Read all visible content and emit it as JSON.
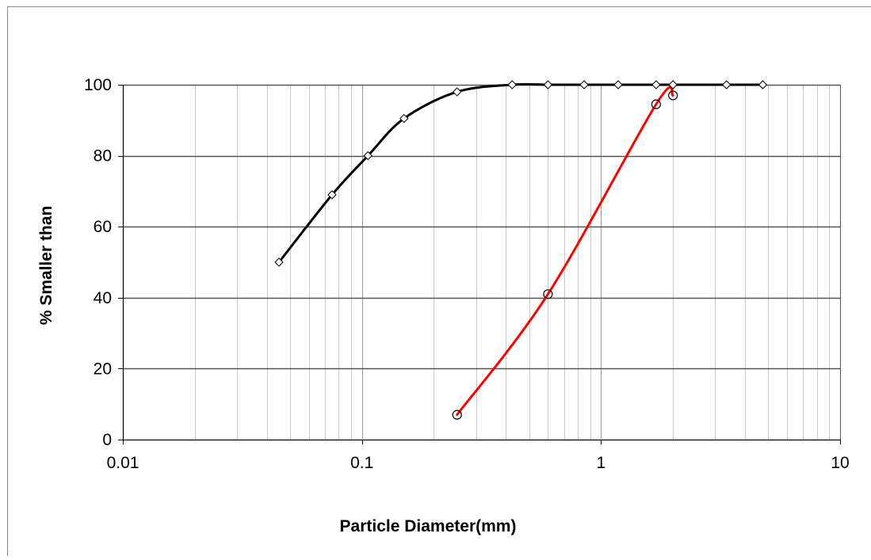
{
  "chart_data": {
    "type": "scatter",
    "xscale": "log",
    "xlim": [
      0.01,
      10
    ],
    "ylim": [
      0,
      100
    ],
    "xlabel": "Particle Diameter(mm)",
    "ylabel": "% Smaller than",
    "x_ticks": [
      0.01,
      0.1,
      1,
      10
    ],
    "x_tick_labels": [
      "0.01",
      "0.1",
      "1",
      "10"
    ],
    "y_ticks": [
      0,
      20,
      40,
      60,
      80,
      100
    ],
    "y_tick_labels": [
      "0",
      "20",
      "40",
      "60",
      "80",
      "100"
    ],
    "grid": {
      "x_major": true,
      "x_minor": true,
      "y_major": true
    },
    "legend": "none",
    "series": [
      {
        "color": "#000000",
        "marker": "diamond",
        "line": "smooth",
        "points": [
          {
            "x": 0.045,
            "y": 50
          },
          {
            "x": 0.075,
            "y": 69
          },
          {
            "x": 0.106,
            "y": 80
          },
          {
            "x": 0.15,
            "y": 90.5
          },
          {
            "x": 0.25,
            "y": 98
          },
          {
            "x": 0.425,
            "y": 100
          },
          {
            "x": 0.6,
            "y": 100
          },
          {
            "x": 0.85,
            "y": 100
          },
          {
            "x": 1.18,
            "y": 100
          },
          {
            "x": 1.7,
            "y": 100
          },
          {
            "x": 2.0,
            "y": 100
          },
          {
            "x": 3.35,
            "y": 100
          },
          {
            "x": 4.75,
            "y": 100
          }
        ]
      },
      {
        "color": "#ff0000",
        "marker": "circle",
        "line": "smooth",
        "points": [
          {
            "x": 0.25,
            "y": 7
          },
          {
            "x": 0.6,
            "y": 41
          },
          {
            "x": 1.7,
            "y": 94.5
          },
          {
            "x": 2.0,
            "y": 97
          }
        ]
      }
    ]
  }
}
